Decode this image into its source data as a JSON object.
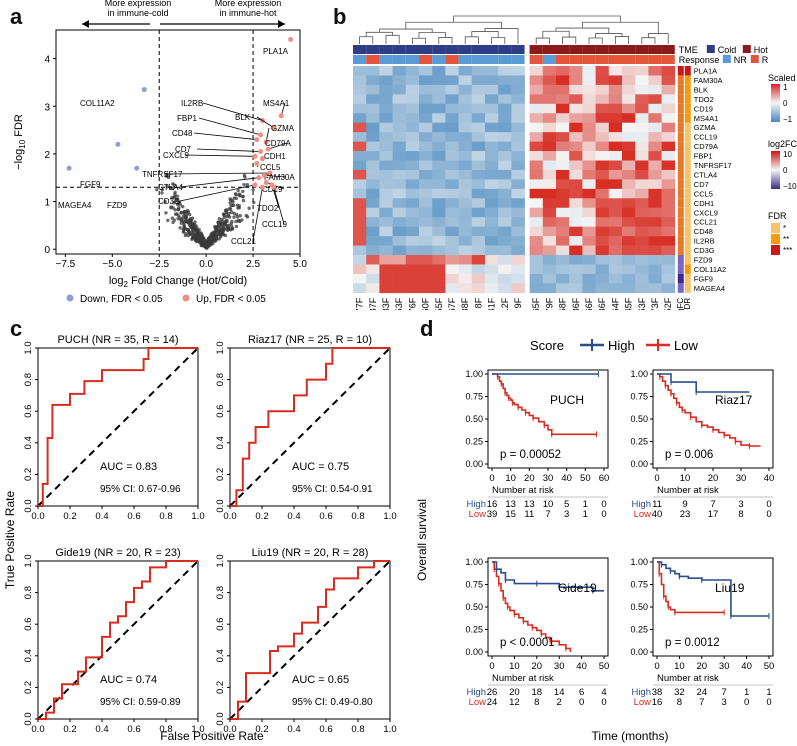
{
  "panels": {
    "a": {
      "letter": "a",
      "arrow_left": "More expression\nin immune-cold",
      "arrow_right": "More expression\nin immune-hot",
      "ylabel_prefix": "−log",
      "ylabel_sub": "10",
      "ylabel_suffix": " FDR",
      "xlabel_prefix": "log",
      "xlabel_sub": "2",
      "xlabel_suffix": " Fold Change (Hot/Cold)",
      "legend_down": "Down, FDR < 0.05",
      "legend_up": "Up, FDR < 0.05",
      "colors": {
        "down": "#8e9fd6",
        "up": "#f08d84",
        "ns": "#222222"
      }
    },
    "b": {
      "letter": "b",
      "tme_label": "TME",
      "response_label": "Response",
      "tme_cold": "Cold",
      "tme_hot": "Hot",
      "resp_nr": "NR",
      "resp_r": "R",
      "scaled_title": "Scaled",
      "scaled_ticks": [
        "1",
        "0",
        "−1"
      ],
      "logfc_title": "log2FC",
      "logfc_ticks": [
        "10",
        "0",
        "−10"
      ],
      "fdr_title": "FDR",
      "fdr_levels": [
        "*",
        "**",
        "***"
      ],
      "side_labels": [
        "logFC",
        "FDR"
      ],
      "genes": [
        "PLA1A",
        "FAM30A",
        "BLK",
        "TDO2",
        "CD19",
        "MS4A1",
        "GZMA",
        "CCL19",
        "CD79A",
        "FBP1",
        "TNFRSF17",
        "CTLA4",
        "CD7",
        "CCL5",
        "CDH1",
        "CXCL9",
        "CCL21",
        "CD48",
        "IL2RB",
        "CD3G",
        "FZD9",
        "COL11A2",
        "FGF9",
        "MAGEA4"
      ],
      "samples_cold": [
        "77F",
        "87F",
        "33F",
        "53F",
        "76F",
        "60F",
        "55F",
        "67F",
        "38F",
        "8F",
        "41F",
        "12F",
        "9F"
      ],
      "samples_hot": [
        "65F",
        "79F",
        "68F",
        "86F",
        "66F",
        "36F",
        "64F",
        "45F",
        "63F",
        "73F",
        "52F"
      ],
      "colors": {
        "cold": "#2f3e84",
        "hot": "#8b1a1a",
        "nr": "#5b9bd5",
        "r": "#e3553c"
      }
    },
    "c": {
      "letter": "c",
      "xlabel": "False Positive Rate",
      "ylabel": "True Positive Rate",
      "axis_ticks": [
        "0.0",
        "0.2",
        "0.4",
        "0.6",
        "0.8",
        "1.0"
      ]
    },
    "d": {
      "letter": "d",
      "legend_title": "Score",
      "legend_high": "High",
      "legend_low": "Low",
      "xlabel": "Time (months)",
      "ylabel": "Overall survival",
      "risk_title": "Number at risk",
      "y_ticks": [
        "1.00",
        "0.75",
        "0.50",
        "0.25",
        "0.00"
      ],
      "colors": {
        "high": "#2a4d8f",
        "low": "#d62d20"
      }
    }
  },
  "chart_data": [
    {
      "type": "scatter",
      "panel": "a",
      "title": "",
      "xlabel": "log2 Fold Change (Hot/Cold)",
      "ylabel": "-log10 FDR",
      "xlim": [
        -8,
        5
      ],
      "ylim": [
        -0.1,
        4.6
      ],
      "x_ticks": [
        -7.5,
        -5.0,
        -2.5,
        0.0,
        2.5,
        5.0
      ],
      "x_tick_labels": [
        "−7.5",
        "−5.0",
        "−2.5",
        "0.0",
        "2.5",
        "5.0"
      ],
      "y_ticks": [
        0,
        1,
        2,
        3,
        4
      ],
      "thresholds": {
        "x": [
          -2.5,
          2.5
        ],
        "y": 1.3
      },
      "labeled_points": [
        {
          "gene": "PLA1A",
          "x": 4.5,
          "y": 4.4,
          "group": "up"
        },
        {
          "gene": "COL11A2",
          "x": -3.3,
          "y": 3.35,
          "group": "down"
        },
        {
          "gene": "FGF9",
          "x": -4.7,
          "y": 2.2,
          "group": "down"
        },
        {
          "gene": "MAGEA4",
          "x": -7.3,
          "y": 1.7,
          "group": "down"
        },
        {
          "gene": "FZD9",
          "x": -3.7,
          "y": 1.7,
          "group": "down"
        },
        {
          "gene": "IL2RB",
          "x": 3.0,
          "y": 2.7,
          "group": "up"
        },
        {
          "gene": "MS4A1",
          "x": 4.0,
          "y": 2.8,
          "group": "up"
        },
        {
          "gene": "FBP1",
          "x": 2.9,
          "y": 2.4,
          "group": "up"
        },
        {
          "gene": "BLK",
          "x": 3.6,
          "y": 2.55,
          "group": "up"
        },
        {
          "gene": "CD48",
          "x": 2.7,
          "y": 2.3,
          "group": "up"
        },
        {
          "gene": "GZMA",
          "x": 3.2,
          "y": 2.25,
          "group": "up"
        },
        {
          "gene": "CD7",
          "x": 2.9,
          "y": 2.05,
          "group": "up"
        },
        {
          "gene": "CD79A",
          "x": 3.3,
          "y": 2.1,
          "group": "up"
        },
        {
          "gene": "CXCL9",
          "x": 2.6,
          "y": 1.95,
          "group": "up"
        },
        {
          "gene": "CDH1",
          "x": 3.0,
          "y": 1.9,
          "group": "up"
        },
        {
          "gene": "CCL5",
          "x": 2.7,
          "y": 1.8,
          "group": "up"
        },
        {
          "gene": "TNFRSF17",
          "x": 3.4,
          "y": 1.6,
          "group": "up"
        },
        {
          "gene": "FAM30A",
          "x": 3.1,
          "y": 1.55,
          "group": "up"
        },
        {
          "gene": "CTLA4",
          "x": 2.8,
          "y": 1.5,
          "group": "up"
        },
        {
          "gene": "CD19",
          "x": 3.2,
          "y": 1.4,
          "group": "up"
        },
        {
          "gene": "CD3G",
          "x": 2.6,
          "y": 1.35,
          "group": "up"
        },
        {
          "gene": "TDO2",
          "x": 3.5,
          "y": 1.35,
          "group": "up"
        },
        {
          "gene": "CCL19",
          "x": 3.6,
          "y": 1.3,
          "group": "up"
        },
        {
          "gene": "CCL21",
          "x": 3.0,
          "y": 1.3,
          "group": "up"
        }
      ]
    },
    {
      "type": "heatmap",
      "panel": "b",
      "rows": [
        "PLA1A",
        "FAM30A",
        "BLK",
        "TDO2",
        "CD19",
        "MS4A1",
        "GZMA",
        "CCL19",
        "CD79A",
        "FBP1",
        "TNFRSF17",
        "CTLA4",
        "CD7",
        "CCL5",
        "CDH1",
        "CXCL9",
        "CCL21",
        "CD48",
        "IL2RB",
        "CD3G",
        "FZD9",
        "COL11A2",
        "FGF9",
        "MAGEA4"
      ],
      "columns": [
        "77F",
        "87F",
        "33F",
        "53F",
        "76F",
        "60F",
        "55F",
        "67F",
        "38F",
        "8F",
        "41F",
        "12F",
        "9F",
        "65F",
        "79F",
        "68F",
        "86F",
        "66F",
        "36F",
        "64F",
        "45F",
        "63F",
        "73F",
        "52F"
      ],
      "response": [
        "NR",
        "R",
        "NR",
        "NR",
        "NR",
        "R",
        "NR",
        "R",
        "NR",
        "NR",
        "NR",
        "NR",
        "NR",
        "R",
        "NR",
        "R",
        "R",
        "R",
        "R",
        "R",
        "R",
        "R",
        "R",
        "R"
      ],
      "tme": [
        "Cold",
        "Cold",
        "Cold",
        "Cold",
        "Cold",
        "Cold",
        "Cold",
        "Cold",
        "Cold",
        "Cold",
        "Cold",
        "Cold",
        "Cold",
        "Hot",
        "Hot",
        "Hot",
        "Hot",
        "Hot",
        "Hot",
        "Hot",
        "Hot",
        "Hot",
        "Hot",
        "Hot"
      ],
      "scale_range": [
        -1,
        1
      ]
    },
    {
      "type": "line",
      "panel": "c",
      "subtype": "roc",
      "x_range": [
        0,
        1
      ],
      "y_range": [
        0,
        1
      ],
      "panels": [
        {
          "title": "PUCH (NR = 35, R = 14)",
          "auc": "AUC = 0.83",
          "ci": "95% CI: 0.67-0.96",
          "fpr": [
            0,
            0.03,
            0.03,
            0.06,
            0.06,
            0.09,
            0.09,
            0.2,
            0.2,
            0.29,
            0.29,
            0.4,
            0.4,
            0.66,
            0.66,
            0.69,
            0.69,
            1.0
          ],
          "tpr": [
            0,
            0,
            0.14,
            0.14,
            0.43,
            0.43,
            0.64,
            0.64,
            0.71,
            0.71,
            0.79,
            0.79,
            0.86,
            0.86,
            0.93,
            0.93,
            1.0,
            1.0
          ]
        },
        {
          "title": "Riaz17 (NR = 25, R = 10)",
          "auc": "AUC = 0.75",
          "ci": "95% CI: 0.54-0.91",
          "fpr": [
            0,
            0.04,
            0.04,
            0.08,
            0.08,
            0.12,
            0.12,
            0.16,
            0.16,
            0.24,
            0.24,
            0.4,
            0.4,
            0.48,
            0.48,
            0.6,
            0.6,
            0.64,
            0.64,
            0.72,
            0.72,
            1.0
          ],
          "tpr": [
            0,
            0,
            0.1,
            0.1,
            0.3,
            0.3,
            0.4,
            0.4,
            0.5,
            0.5,
            0.6,
            0.6,
            0.7,
            0.7,
            0.8,
            0.8,
            0.9,
            0.9,
            1.0,
            1.0,
            1.0,
            1.0
          ]
        },
        {
          "title": "Gide19 (NR = 20, R = 23)",
          "auc": "AUC = 0.74",
          "ci": "95% CI: 0.59-0.89",
          "fpr": [
            0,
            0.05,
            0.05,
            0.1,
            0.1,
            0.15,
            0.15,
            0.25,
            0.25,
            0.3,
            0.3,
            0.4,
            0.4,
            0.45,
            0.45,
            0.5,
            0.5,
            0.55,
            0.55,
            0.6,
            0.6,
            0.65,
            0.65,
            0.7,
            0.7,
            0.8,
            0.8,
            1.0
          ],
          "tpr": [
            0,
            0,
            0.04,
            0.04,
            0.13,
            0.13,
            0.22,
            0.22,
            0.3,
            0.3,
            0.39,
            0.39,
            0.52,
            0.52,
            0.61,
            0.61,
            0.65,
            0.65,
            0.74,
            0.74,
            0.83,
            0.83,
            0.87,
            0.87,
            0.96,
            0.96,
            1.0,
            1.0
          ]
        },
        {
          "title": "Liu19 (NR = 20, R = 28)",
          "auc": "AUC = 0.65",
          "ci": "95% CI: 0.49-0.80",
          "fpr": [
            0,
            0.05,
            0.05,
            0.1,
            0.1,
            0.25,
            0.25,
            0.3,
            0.3,
            0.4,
            0.4,
            0.45,
            0.45,
            0.55,
            0.55,
            0.6,
            0.6,
            0.65,
            0.65,
            0.8,
            0.8,
            0.9,
            0.9,
            1.0
          ],
          "tpr": [
            0,
            0,
            0.11,
            0.11,
            0.29,
            0.29,
            0.43,
            0.43,
            0.46,
            0.46,
            0.54,
            0.54,
            0.61,
            0.61,
            0.71,
            0.71,
            0.82,
            0.82,
            0.89,
            0.89,
            0.96,
            0.96,
            1.0,
            1.0
          ]
        }
      ]
    },
    {
      "type": "line",
      "panel": "d",
      "subtype": "kaplan-meier",
      "y_range": [
        0,
        1
      ],
      "panels": [
        {
          "title": "PUCH",
          "pval": "p = 0.00052",
          "xmax": 60,
          "x_ticks": [
            0,
            10,
            20,
            30,
            40,
            50,
            60
          ],
          "high": {
            "t": [
              0,
              57
            ],
            "s": [
              1.0,
              1.0
            ]
          },
          "low": {
            "t": [
              0,
              3,
              4,
              5,
              6,
              7,
              8,
              9,
              10,
              11,
              12,
              14,
              16,
              18,
              20,
              22,
              25,
              28,
              30,
              32,
              40,
              56
            ],
            "s": [
              1.0,
              0.97,
              0.92,
              0.89,
              0.84,
              0.79,
              0.76,
              0.73,
              0.71,
              0.68,
              0.66,
              0.63,
              0.6,
              0.57,
              0.54,
              0.51,
              0.47,
              0.43,
              0.38,
              0.33,
              0.33,
              0.33
            ]
          },
          "risk_high": [
            "16",
            "13",
            "13",
            "10",
            "5",
            "1",
            "0"
          ],
          "risk_low": [
            "39",
            "15",
            "11",
            "7",
            "3",
            "1",
            "0"
          ]
        },
        {
          "title": "Riaz17",
          "pval": "p = 0.006",
          "xmax": 40,
          "x_ticks": [
            0,
            10,
            20,
            30,
            40
          ],
          "high": {
            "t": [
              0,
              5,
              10,
              14,
              33
            ],
            "s": [
              1.0,
              0.91,
              0.91,
              0.8,
              0.8
            ]
          },
          "low": {
            "t": [
              0,
              1,
              2,
              3,
              4,
              5,
              6,
              7,
              8,
              9,
              10,
              12,
              14,
              16,
              18,
              20,
              22,
              24,
              26,
              28,
              30,
              33,
              37
            ],
            "s": [
              1.0,
              0.97,
              0.92,
              0.87,
              0.82,
              0.78,
              0.73,
              0.68,
              0.63,
              0.6,
              0.57,
              0.52,
              0.47,
              0.43,
              0.41,
              0.38,
              0.35,
              0.32,
              0.29,
              0.25,
              0.21,
              0.2,
              0.2
            ]
          },
          "risk_high": [
            "11",
            "9",
            "7",
            "3",
            "0"
          ],
          "risk_low": [
            "40",
            "23",
            "17",
            "8",
            "0"
          ]
        },
        {
          "title": "Gide19",
          "pval": "p < 0.0001",
          "xmax": 50,
          "x_ticks": [
            0,
            10,
            20,
            30,
            40,
            50
          ],
          "high": {
            "t": [
              0,
              2,
              4,
              6,
              10,
              20,
              30,
              45,
              50
            ],
            "s": [
              1.0,
              0.92,
              0.88,
              0.8,
              0.76,
              0.76,
              0.72,
              0.68,
              0.68
            ]
          },
          "low": {
            "t": [
              0,
              1,
              2,
              3,
              4,
              5,
              6,
              7,
              8,
              10,
              12,
              14,
              16,
              18,
              20,
              22,
              24,
              26,
              30,
              33,
              35
            ],
            "s": [
              1.0,
              0.92,
              0.84,
              0.76,
              0.68,
              0.6,
              0.54,
              0.5,
              0.46,
              0.42,
              0.38,
              0.34,
              0.3,
              0.27,
              0.24,
              0.2,
              0.16,
              0.12,
              0.08,
              0.04,
              0.0
            ]
          },
          "risk_high": [
            "26",
            "20",
            "18",
            "14",
            "6",
            "4"
          ],
          "risk_low": [
            "24",
            "12",
            "8",
            "2",
            "0",
            "0"
          ]
        },
        {
          "title": "Liu19",
          "pval": "p = 0.0012",
          "xmax": 50,
          "x_ticks": [
            0,
            10,
            20,
            30,
            40,
            50
          ],
          "high": {
            "t": [
              0,
              2,
              4,
              6,
              8,
              10,
              14,
              20,
              28,
              33,
              40,
              50
            ],
            "s": [
              1.0,
              0.97,
              0.93,
              0.9,
              0.87,
              0.84,
              0.82,
              0.8,
              0.8,
              0.4,
              0.4,
              0.4
            ]
          },
          "low": {
            "t": [
              0,
              1,
              2,
              3,
              4,
              5,
              6,
              8,
              12,
              30
            ],
            "s": [
              1.0,
              0.87,
              0.75,
              0.62,
              0.56,
              0.5,
              0.47,
              0.44,
              0.44,
              0.44
            ]
          },
          "risk_high": [
            "38",
            "32",
            "24",
            "7",
            "1",
            "1"
          ],
          "risk_low": [
            "16",
            "8",
            "7",
            "3",
            "0",
            "0"
          ]
        }
      ]
    }
  ]
}
